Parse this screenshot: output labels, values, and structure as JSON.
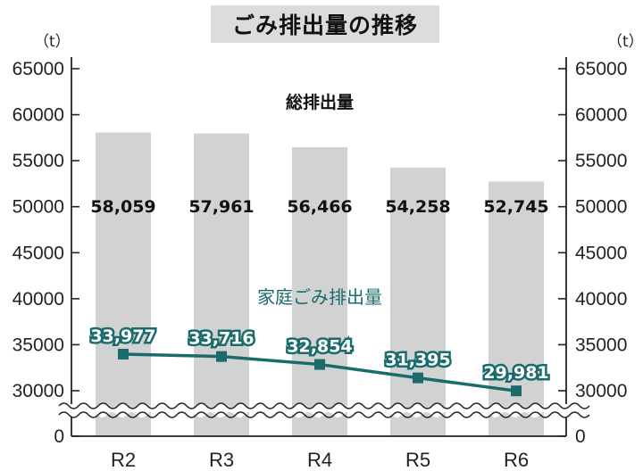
{
  "title": "ごみ排出量の推移",
  "chart_data": {
    "type": "bar",
    "categories": [
      "R2",
      "R3",
      "R4",
      "R5",
      "R6"
    ],
    "ylim": [
      25000,
      65000
    ],
    "yticks": [
      30000,
      35000,
      40000,
      45000,
      50000,
      55000,
      60000,
      65000
    ],
    "y_zero_label": "0",
    "y_axis_break": true,
    "unit_left": "（t）",
    "unit_right": "（t）",
    "series": [
      {
        "name": "総排出量",
        "kind": "bar",
        "values": [
          58059,
          57961,
          56466,
          54258,
          52745
        ],
        "value_labels": [
          "58,059",
          "57,961",
          "56,466",
          "54,258",
          "52,745"
        ]
      },
      {
        "name": "家庭ごみ排出量",
        "kind": "line",
        "values": [
          33977,
          33716,
          32854,
          31395,
          29981
        ],
        "value_labels": [
          "33,977",
          "33,716",
          "32,854",
          "31,395",
          "29,981"
        ]
      }
    ],
    "colors": {
      "bar": "#d2d2d2",
      "line": "#1a6b6b",
      "axis": "#222222"
    },
    "grid": false
  }
}
